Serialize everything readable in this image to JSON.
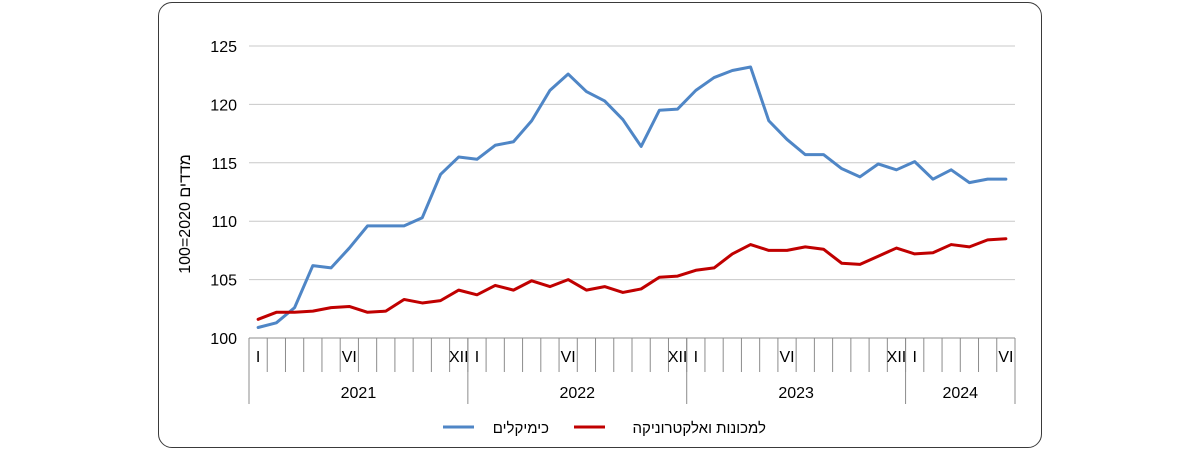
{
  "chart_data": {
    "type": "line",
    "ylabel": "מדדים 2020=100",
    "ylim": [
      100,
      125
    ],
    "yticks": [
      100,
      105,
      110,
      115,
      120,
      125
    ],
    "grid": true,
    "legend_position": "bottom",
    "months": 42,
    "month_labels": [
      {
        "index": 0,
        "text": "I"
      },
      {
        "index": 5,
        "text": "VI"
      },
      {
        "index": 11,
        "text": "XII"
      },
      {
        "index": 12,
        "text": "I"
      },
      {
        "index": 17,
        "text": "VI"
      },
      {
        "index": 23,
        "text": "XII"
      },
      {
        "index": 24,
        "text": "I"
      },
      {
        "index": 29,
        "text": "VI"
      },
      {
        "index": 35,
        "text": "XII"
      },
      {
        "index": 36,
        "text": "I"
      },
      {
        "index": 41,
        "text": "VI"
      }
    ],
    "years": [
      {
        "label": "2021",
        "start": 0,
        "end": 12
      },
      {
        "label": "2022",
        "start": 12,
        "end": 24
      },
      {
        "label": "2023",
        "start": 24,
        "end": 36
      },
      {
        "label": "2024",
        "start": 36,
        "end": 42
      }
    ],
    "series": [
      {
        "name": "כימיקלים",
        "color": "#4f86c6",
        "values": [
          100.9,
          101.3,
          102.6,
          106.2,
          106.0,
          107.7,
          109.6,
          109.6,
          109.6,
          110.3,
          114.0,
          115.5,
          115.3,
          116.5,
          116.8,
          118.6,
          121.2,
          122.6,
          121.1,
          120.3,
          118.7,
          116.4,
          119.5,
          119.6,
          121.2,
          122.3,
          122.9,
          123.2,
          118.6,
          117.0,
          115.7,
          115.7,
          114.5,
          113.8,
          114.9,
          114.4,
          115.1,
          113.6,
          114.4,
          113.3,
          113.6,
          113.6
        ]
      },
      {
        "name": "למכונות ואלקטרוניקה",
        "color": "#c00000",
        "values": [
          101.6,
          102.2,
          102.2,
          102.3,
          102.6,
          102.7,
          102.2,
          102.3,
          103.3,
          103.0,
          103.2,
          104.1,
          103.7,
          104.5,
          104.1,
          104.9,
          104.4,
          105.0,
          104.1,
          104.4,
          103.9,
          104.2,
          105.2,
          105.3,
          105.8,
          106.0,
          107.2,
          108.0,
          107.5,
          107.5,
          107.8,
          107.6,
          106.4,
          106.3,
          107.0,
          107.7,
          107.2,
          107.3,
          108.0,
          107.8,
          108.4,
          108.5
        ]
      }
    ]
  }
}
